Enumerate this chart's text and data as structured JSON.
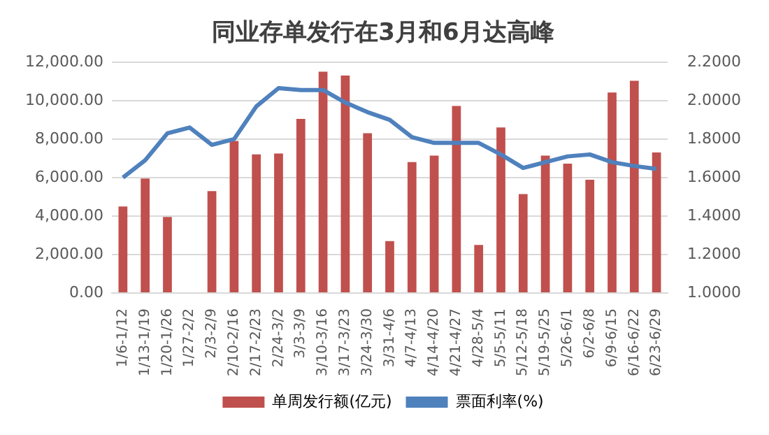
{
  "chart_data": {
    "type": "bar",
    "title": "同业存单发行在3月和6月达高峰",
    "categories": [
      "1/6-1/12",
      "1/13-1/19",
      "1/20-1/26",
      "1/27-2/2",
      "2/3-2/9",
      "2/10-2/16",
      "2/17-2/23",
      "2/24-3/2",
      "3/3-3/9",
      "3/10-3/16",
      "3/17-3/23",
      "3/24-3/30",
      "3/31-4/6",
      "4/7-4/13",
      "4/14-4/20",
      "4/21-4/27",
      "4/28-5/4",
      "5/5-5/11",
      "5/12-5/18",
      "5/19-5/25",
      "5/26-6/1",
      "6/2-6/8",
      "6/9-6/15",
      "6/16-6/22",
      "6/23-6/29"
    ],
    "series": [
      {
        "name": "单周发行额(亿元)",
        "color": "#c0504d",
        "values": [
          4500,
          5950,
          3950,
          null,
          5300,
          7900,
          7200,
          7250,
          9050,
          11500,
          11300,
          8300,
          2700,
          6800,
          7140,
          9720,
          2500,
          8600,
          5140,
          7140,
          6720,
          5890,
          10420,
          11030,
          7300
        ]
      },
      {
        "name": "票面利率(%)",
        "type": "line",
        "axis": "y2",
        "color": "#4f81bd",
        "values": [
          1.6,
          1.69,
          1.83,
          1.86,
          1.77,
          1.8,
          1.97,
          2.065,
          2.055,
          2.055,
          1.99,
          1.94,
          1.9,
          1.81,
          1.78,
          1.78,
          1.78,
          1.72,
          1.65,
          1.68,
          1.71,
          1.72,
          1.68,
          1.66,
          1.645
        ]
      }
    ],
    "ylim": [
      0,
      12000
    ],
    "yticks": [
      {
        "value": 0,
        "label": "0.00"
      },
      {
        "value": 2000,
        "label": "2,000.00"
      },
      {
        "value": 4000,
        "label": "4,000.00"
      },
      {
        "value": 6000,
        "label": "6,000.00"
      },
      {
        "value": 8000,
        "label": "8,000.00"
      },
      {
        "value": 10000,
        "label": "10,000.00"
      },
      {
        "value": 12000,
        "label": "12,000.00"
      }
    ],
    "y2lim": [
      1.0,
      2.2
    ],
    "y2ticks": [
      {
        "value": 1.0,
        "label": "1.0000"
      },
      {
        "value": 1.2,
        "label": "1.2000"
      },
      {
        "value": 1.4,
        "label": "1.4000"
      },
      {
        "value": 1.6,
        "label": "1.6000"
      },
      {
        "value": 1.8,
        "label": "1.8000"
      },
      {
        "value": 2.0,
        "label": "2.0000"
      },
      {
        "value": 2.2,
        "label": "2.2000"
      }
    ],
    "grid": "y",
    "legend": "bottom",
    "marker": "none",
    "line_style": "solid"
  }
}
